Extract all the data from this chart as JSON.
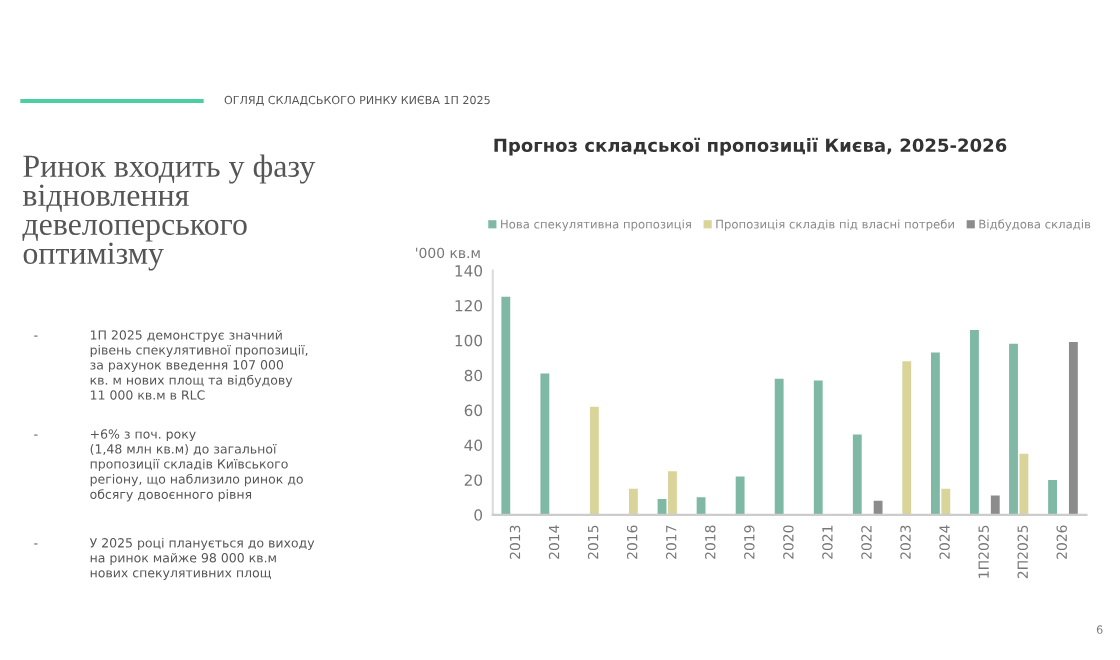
{
  "chart_data": {
    "type": "bar",
    "title": "Прогноз складської пропозиції Києва, 2025-2026",
    "ylabel": "'000 кв.м",
    "categories": [
      "2013",
      "2014",
      "2015",
      "2016",
      "2017",
      "2018",
      "2019",
      "2020",
      "2021",
      "2022",
      "2023",
      "2024",
      "1П2025",
      "2П2025",
      "2026"
    ],
    "series": [
      {
        "name": "Нова спекулятивна пропозиція",
        "color": "#7fb9a5",
        "values": [
          125,
          81,
          0,
          0,
          9,
          10,
          22,
          78,
          77,
          46,
          0,
          93,
          106,
          98,
          20
        ]
      },
      {
        "name": "Пропозиція складів під власні потреби",
        "color": "#d9d49a",
        "values": [
          0,
          0,
          62,
          15,
          25,
          0,
          0,
          0,
          0,
          0,
          88,
          15,
          0,
          35,
          0
        ]
      },
      {
        "name": "Відбудова складів",
        "color": "#8c8c8c",
        "values": [
          0,
          0,
          0,
          0,
          0,
          0,
          0,
          0,
          0,
          8,
          0,
          0,
          11,
          0,
          99
        ]
      }
    ],
    "ylim": [
      0,
      140
    ],
    "yticks": [
      0,
      20,
      40,
      60,
      80,
      100,
      120,
      140
    ],
    "grid": false,
    "legend": "top",
    "annotations": [
      "ОГЛЯД СКЛАДСЬКОГО РИНКУ КИЄВА 1П 2025",
      "Ринок входить у фазу\nвідновлення\nдевелоперського\nоптимізму",
      "1П 2025 демонструє значний\nрівень спекулятивної пропозиції,\nза рахунок введення 107 000\nкв. м нових площ та відбудову\n11 000 кв.м в RLC",
      "+6% з поч. року\n(1,48 млн кв.м) до загальної\nпропозиції складів Київського\nрегіону, що наблизило ринок до\nобсягу довоєнного рівня",
      "У 2025 році планується до виходу\nна ринок майже 98 000 кв.м\nнових спекулятивних площ",
      "6",
      "-",
      "-",
      "-"
    ]
  }
}
